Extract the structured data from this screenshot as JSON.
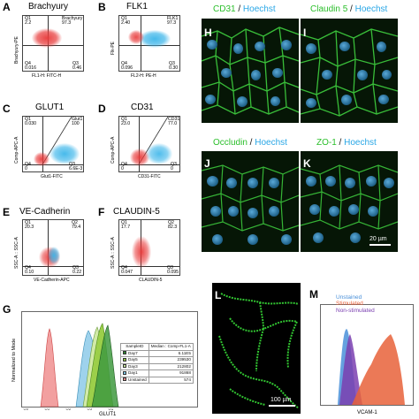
{
  "panels": {
    "A": {
      "label": "A",
      "title": "Brachyury",
      "q1": "Q1\n2.2",
      "q2": "Brachyury\n97.3",
      "q4": "Q4\n0.016",
      "q3": "Q3\n0.46",
      "xlabel": "FL1-H: FITC-H",
      "ylabel": "Brachyury-PE"
    },
    "B": {
      "label": "B",
      "title": "FLK1",
      "q1": "Q1\n2.40",
      "q2": "FLK1\n97.3",
      "q4": "Q4\n0.096",
      "q3": "Q3\n0.30",
      "xlabel": "FL2-H: PE-H",
      "ylabel": "Flk-PE"
    },
    "C": {
      "label": "C",
      "title": "GLUT1",
      "q1": "Q1\n0.030",
      "q2": "Glut1\n100",
      "q4": "Q4\n0",
      "q3": "Q3\n6.6E-3",
      "xlabel": "Glut1-FITC",
      "ylabel": "Comp-APC-A"
    },
    "D": {
      "label": "D",
      "title": "CD31",
      "q1": "Q1\n23.0",
      "q2": "CD31\n77.0",
      "q4": "Q4\n0",
      "q3": "Q3\n0",
      "xlabel": "CD31-FITC",
      "ylabel": "Comp-APC-A"
    },
    "E": {
      "label": "E",
      "title": "VE-Cadherin",
      "q1": "Q1\n20.3",
      "q2": "Q2\n79.4",
      "q4": "Q4\n0.10",
      "q3": "Q3\n0.22",
      "xlabel": "VE-Cadherin-APC",
      "ylabel": "SSC-A :: SSC-A"
    },
    "F": {
      "label": "F",
      "title": "CLAUDIN-5",
      "q1": "Q1\n17.7",
      "q2": "Q2\n82.3",
      "q4": "Q4\n0.047",
      "q3": "Q3\n0.095",
      "xlabel": "CLAUDIN-5",
      "ylabel": "SSC-A :: SSC-A"
    },
    "G": {
      "label": "G",
      "xlabel": "GLUT1",
      "ylabel": "Normalized to Mode"
    },
    "H": {
      "label": "H",
      "marker": "CD31",
      "sep": " / ",
      "stain": "Hoechst"
    },
    "I": {
      "label": "I",
      "marker": "Claudin 5",
      "sep": " / ",
      "stain": "Hoechst"
    },
    "J": {
      "label": "J",
      "marker": "Occludin",
      "sep": " / ",
      "stain": "Hoechst"
    },
    "K": {
      "label": "K",
      "marker": "ZO-1",
      "sep": " / ",
      "stain": "Hoechst"
    },
    "L": {
      "label": "L",
      "scalebar": "100 µm"
    },
    "M": {
      "label": "M",
      "xlabel": "VCAM-1",
      "legend": [
        "Unstained",
        "Stimulated",
        "Non-stimulated"
      ]
    }
  },
  "scalebar_K": "20 µm",
  "g_table": {
    "headers": [
      "SampleID",
      "Median : Comp-FL1-A"
    ],
    "rows": [
      {
        "sample": "Day7",
        "median": "6.11E5",
        "color": "#2f8a2f"
      },
      {
        "sample": "Day5",
        "median": "239530",
        "color": "#8fc93a"
      },
      {
        "sample": "Day3",
        "median": "212802",
        "color": "#c9e6a0"
      },
      {
        "sample": "Day1",
        "median": "91868",
        "color": "#7fc9e8"
      },
      {
        "sample": "Unstained",
        "median": "574",
        "color": "#f08a8a"
      }
    ]
  },
  "colors": {
    "red_events": "#e83a3a",
    "cyan_events": "#3db6ea",
    "micro_green": "#2bbf2b",
    "micro_blue": "#2aa7e6",
    "unstained": "#4a90d9",
    "stimulated": "#e8613a",
    "non_stimulated": "#7a3fb0"
  }
}
